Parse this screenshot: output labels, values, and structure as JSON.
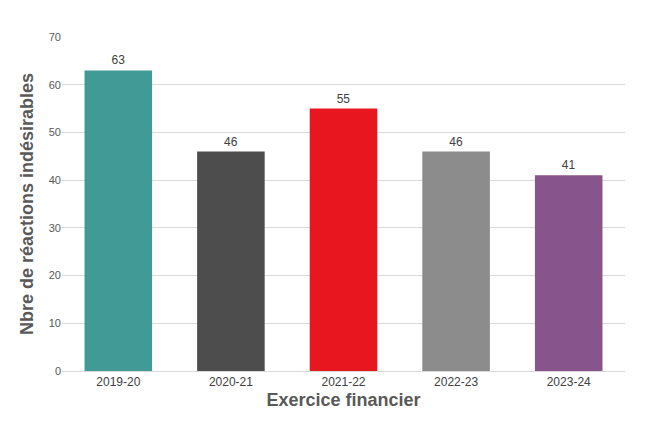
{
  "chart_data": {
    "type": "bar",
    "x_label": "Exercice financier",
    "y_label": "Nbre de réactions indésirables",
    "categories": [
      "2019-20",
      "2020-21",
      "2021-22",
      "2022-23",
      "2023-24"
    ],
    "values": [
      63,
      46,
      55,
      46,
      41
    ],
    "colors": [
      "#429a96",
      "#4d4d4d",
      "#e8161e",
      "#8c8c8c",
      "#87548c"
    ],
    "ylim": [
      0,
      70
    ],
    "yticks": [
      0,
      10,
      20,
      30,
      40,
      50,
      60,
      70
    ],
    "grid": true,
    "data_labels": true
  }
}
